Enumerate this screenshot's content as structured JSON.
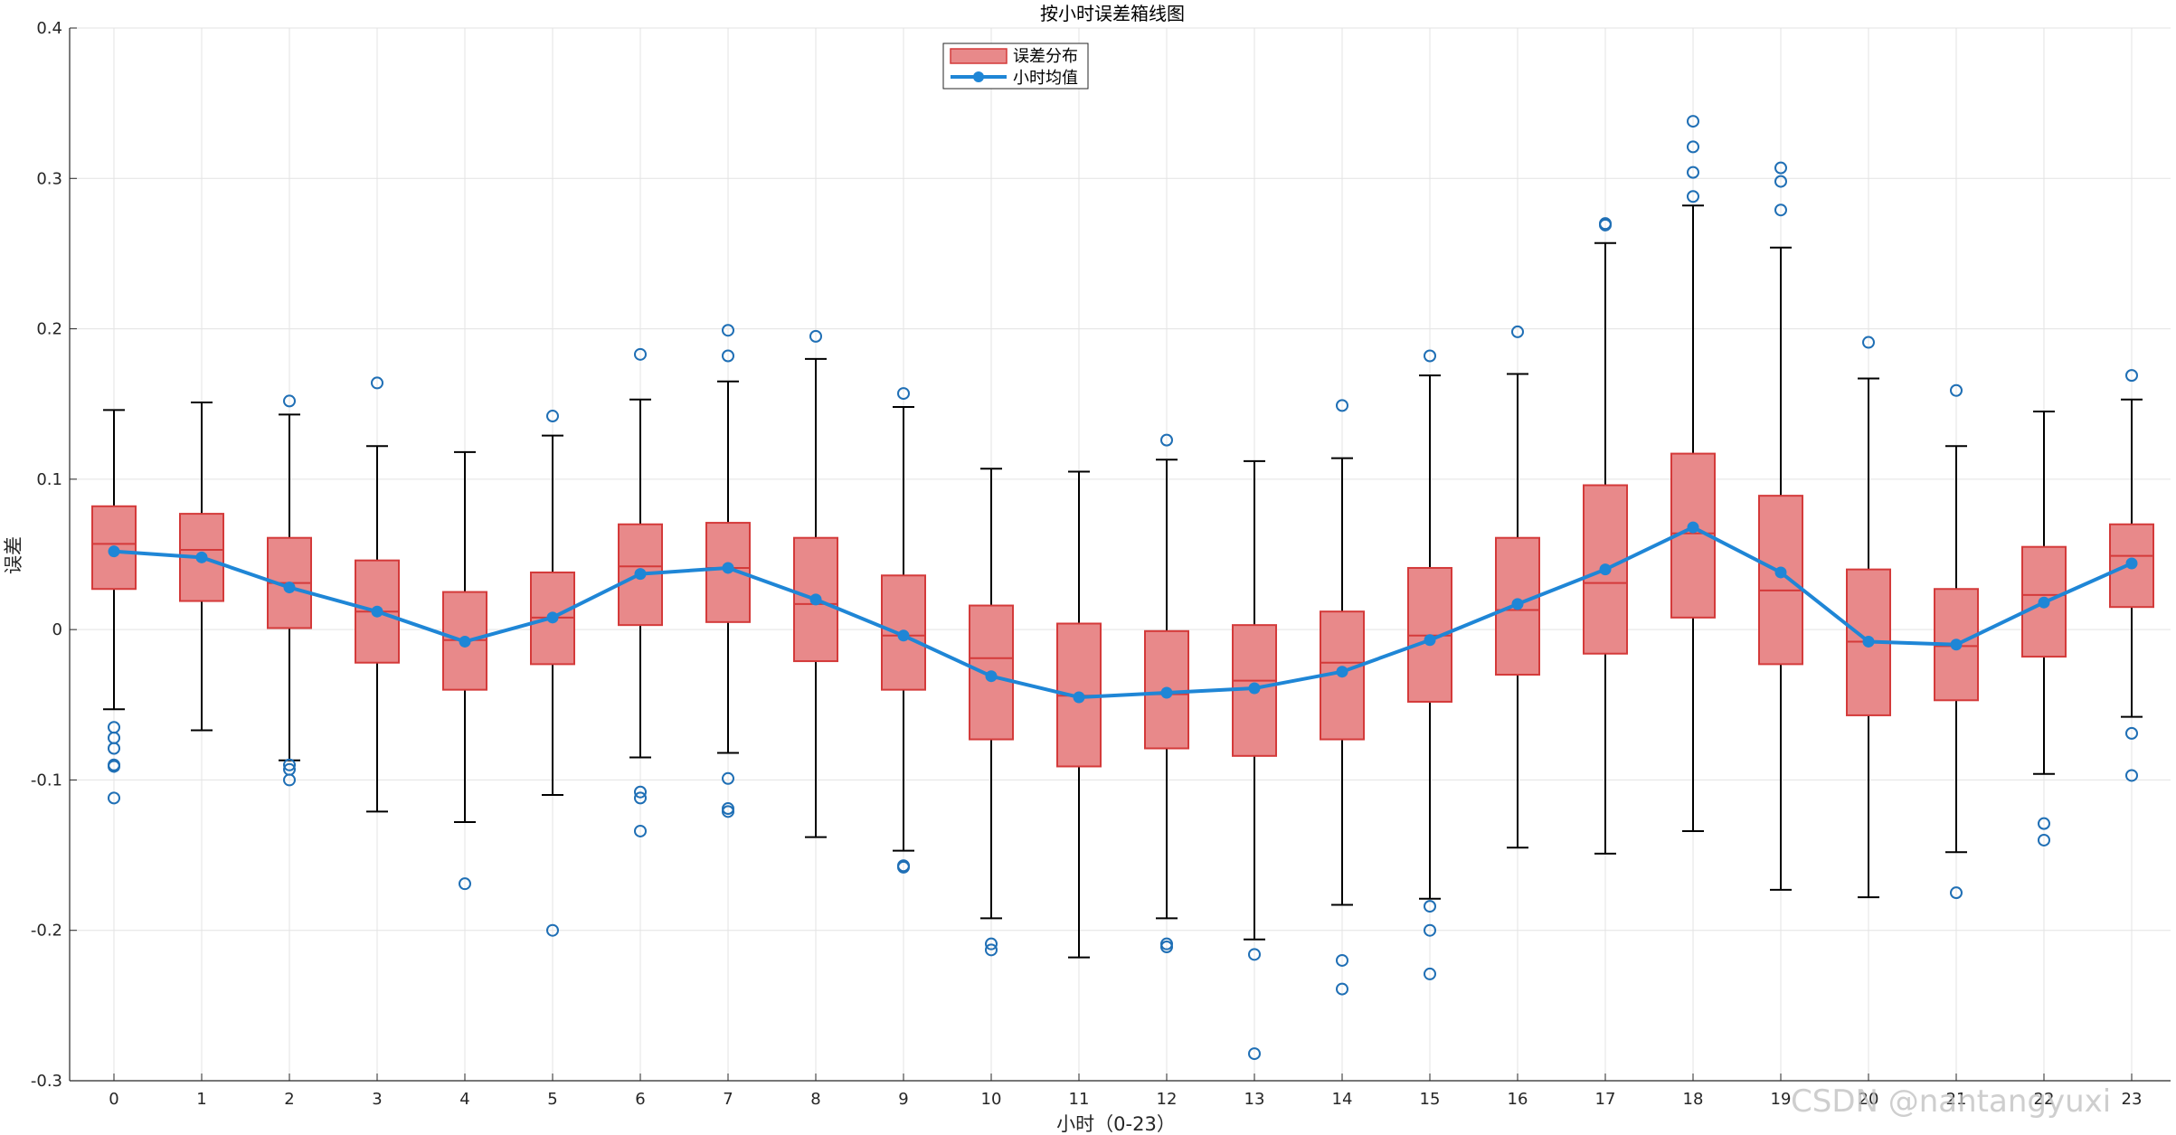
{
  "chart_data": {
    "type": "box",
    "title": "按小时误差箱线图",
    "xlabel": "小时（0-23）",
    "ylabel": "误差",
    "ylim": [
      -0.3,
      0.4
    ],
    "yticks": [
      -0.3,
      -0.2,
      -0.1,
      0,
      0.1,
      0.2,
      0.3,
      0.4
    ],
    "ytick_labels": [
      "-0.3",
      "-0.2",
      "-0.1",
      "0",
      "0.1",
      "0.2",
      "0.3",
      "0.4"
    ],
    "grid": true,
    "legend_position": "top-center",
    "categories": [
      "0",
      "1",
      "2",
      "3",
      "4",
      "5",
      "6",
      "7",
      "8",
      "9",
      "10",
      "11",
      "12",
      "13",
      "14",
      "15",
      "16",
      "17",
      "18",
      "19",
      "20",
      "21",
      "22",
      "23"
    ],
    "series": [
      {
        "name": "误差分布",
        "kind": "box",
        "color": "#e8898a",
        "edge_color": "#d43a3a",
        "boxes": [
          {
            "q1": 0.027,
            "median": 0.057,
            "q3": 0.082,
            "whisker_low": -0.053,
            "whisker_high": 0.146,
            "outliers": [
              -0.065,
              -0.072,
              -0.079,
              -0.09,
              -0.091,
              -0.112
            ]
          },
          {
            "q1": 0.019,
            "median": 0.053,
            "q3": 0.077,
            "whisker_low": -0.067,
            "whisker_high": 0.151,
            "outliers": []
          },
          {
            "q1": 0.001,
            "median": 0.031,
            "q3": 0.061,
            "whisker_low": -0.087,
            "whisker_high": 0.143,
            "outliers": [
              0.152,
              -0.09,
              -0.093,
              -0.1
            ]
          },
          {
            "q1": -0.022,
            "median": 0.012,
            "q3": 0.046,
            "whisker_low": -0.121,
            "whisker_high": 0.122,
            "outliers": [
              0.164
            ]
          },
          {
            "q1": -0.04,
            "median": -0.007,
            "q3": 0.025,
            "whisker_low": -0.128,
            "whisker_high": 0.118,
            "outliers": [
              -0.169
            ]
          },
          {
            "q1": -0.023,
            "median": 0.008,
            "q3": 0.038,
            "whisker_low": -0.11,
            "whisker_high": 0.129,
            "outliers": [
              0.142,
              -0.2
            ]
          },
          {
            "q1": 0.003,
            "median": 0.042,
            "q3": 0.07,
            "whisker_low": -0.085,
            "whisker_high": 0.153,
            "outliers": [
              0.183,
              -0.108,
              -0.112,
              -0.134
            ]
          },
          {
            "q1": 0.005,
            "median": 0.041,
            "q3": 0.071,
            "whisker_low": -0.082,
            "whisker_high": 0.165,
            "outliers": [
              0.199,
              0.182,
              -0.099,
              -0.119,
              -0.121
            ]
          },
          {
            "q1": -0.021,
            "median": 0.017,
            "q3": 0.061,
            "whisker_low": -0.138,
            "whisker_high": 0.18,
            "outliers": [
              0.195
            ]
          },
          {
            "q1": -0.04,
            "median": -0.004,
            "q3": 0.036,
            "whisker_low": -0.147,
            "whisker_high": 0.148,
            "outliers": [
              0.157,
              -0.157,
              -0.158
            ]
          },
          {
            "q1": -0.073,
            "median": -0.019,
            "q3": 0.016,
            "whisker_low": -0.192,
            "whisker_high": 0.107,
            "outliers": [
              -0.209,
              -0.213
            ]
          },
          {
            "q1": -0.091,
            "median": -0.044,
            "q3": 0.004,
            "whisker_low": -0.218,
            "whisker_high": 0.105,
            "outliers": []
          },
          {
            "q1": -0.079,
            "median": -0.043,
            "q3": -0.001,
            "whisker_low": -0.192,
            "whisker_high": 0.113,
            "outliers": [
              0.126,
              -0.209,
              -0.211
            ]
          },
          {
            "q1": -0.084,
            "median": -0.034,
            "q3": 0.003,
            "whisker_low": -0.206,
            "whisker_high": 0.112,
            "outliers": [
              -0.216,
              -0.282
            ]
          },
          {
            "q1": -0.073,
            "median": -0.022,
            "q3": 0.012,
            "whisker_low": -0.183,
            "whisker_high": 0.114,
            "outliers": [
              0.149,
              -0.22,
              -0.239
            ]
          },
          {
            "q1": -0.048,
            "median": -0.004,
            "q3": 0.041,
            "whisker_low": -0.179,
            "whisker_high": 0.169,
            "outliers": [
              0.182,
              -0.184,
              -0.2,
              -0.229
            ]
          },
          {
            "q1": -0.03,
            "median": 0.013,
            "q3": 0.061,
            "whisker_low": -0.145,
            "whisker_high": 0.17,
            "outliers": [
              0.198
            ]
          },
          {
            "q1": -0.016,
            "median": 0.031,
            "q3": 0.096,
            "whisker_low": -0.149,
            "whisker_high": 0.257,
            "outliers": [
              0.27,
              0.269
            ]
          },
          {
            "q1": 0.008,
            "median": 0.064,
            "q3": 0.117,
            "whisker_low": -0.134,
            "whisker_high": 0.282,
            "outliers": [
              0.288,
              0.304,
              0.321,
              0.338
            ]
          },
          {
            "q1": -0.023,
            "median": 0.026,
            "q3": 0.089,
            "whisker_low": -0.173,
            "whisker_high": 0.254,
            "outliers": [
              0.279,
              0.298,
              0.307
            ]
          },
          {
            "q1": -0.057,
            "median": -0.008,
            "q3": 0.04,
            "whisker_low": -0.178,
            "whisker_high": 0.167,
            "outliers": [
              0.191
            ]
          },
          {
            "q1": -0.047,
            "median": -0.011,
            "q3": 0.027,
            "whisker_low": -0.148,
            "whisker_high": 0.122,
            "outliers": [
              0.159,
              -0.175
            ]
          },
          {
            "q1": -0.018,
            "median": 0.023,
            "q3": 0.055,
            "whisker_low": -0.096,
            "whisker_high": 0.145,
            "outliers": [
              -0.129,
              -0.14
            ]
          },
          {
            "q1": 0.015,
            "median": 0.049,
            "q3": 0.07,
            "whisker_low": -0.058,
            "whisker_high": 0.153,
            "outliers": [
              0.169,
              -0.069,
              -0.097
            ]
          }
        ]
      },
      {
        "name": "小时均值",
        "kind": "line",
        "color": "#1f86d6",
        "values": [
          0.052,
          0.048,
          0.028,
          0.012,
          -0.008,
          0.008,
          0.037,
          0.041,
          0.02,
          -0.004,
          -0.031,
          -0.045,
          -0.042,
          -0.039,
          -0.028,
          -0.007,
          0.017,
          0.04,
          0.068,
          0.038,
          -0.008,
          -0.01,
          0.018,
          0.044
        ]
      }
    ]
  },
  "legend": {
    "box_label": "误差分布",
    "line_label": "小时均值"
  },
  "watermark": "CSDN @nantangyuxi",
  "colors": {
    "box_fill": "#e8898a",
    "box_edge": "#d43a3a",
    "mean_line": "#1f86d6",
    "whisker": "#000000",
    "outlier": "#1f6fb5",
    "grid": "#e3e3e3",
    "axis": "#262626"
  }
}
